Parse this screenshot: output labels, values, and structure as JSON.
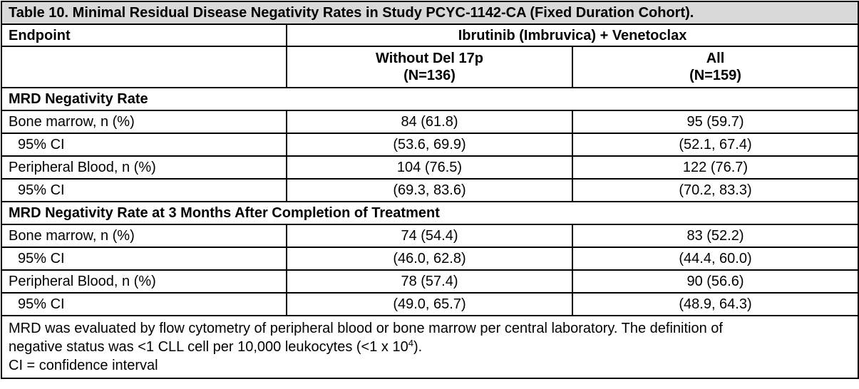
{
  "table": {
    "title": "Table 10. Minimal Residual Disease Negativity Rates in Study PCYC-1142-CA (Fixed Duration Cohort).",
    "endpoint_header": "Endpoint",
    "treatment_header": "Ibrutinib (Imbruvica) + Venetoclax",
    "columns": [
      {
        "name": "Without Del 17p",
        "n": "(N=136)"
      },
      {
        "name": "All",
        "n": "(N=159)"
      }
    ],
    "sections": [
      {
        "heading": "MRD Negativity Rate",
        "rows": [
          {
            "label": "Bone marrow, n (%)",
            "v1": "84 (61.8)",
            "v2": "95 (59.7)"
          },
          {
            "label": "95% CI",
            "v1": "(53.6, 69.9)",
            "v2": "(52.1, 67.4)"
          },
          {
            "label": "Peripheral Blood, n (%)",
            "v1": "104 (76.5)",
            "v2": "122 (76.7)"
          },
          {
            "label": "95% CI",
            "v1": "(69.3, 83.6)",
            "v2": "(70.2, 83.3)"
          }
        ]
      },
      {
        "heading": "MRD Negativity Rate at 3 Months After Completion of Treatment",
        "rows": [
          {
            "label": "Bone marrow, n (%)",
            "v1": "74 (54.4)",
            "v2": "83 (52.2)"
          },
          {
            "label": "95% CI",
            "v1": "(46.0, 62.8)",
            "v2": "(44.4, 60.0)"
          },
          {
            "label": "Peripheral Blood, n (%)",
            "v1": "78 (57.4)",
            "v2": "90 (56.6)"
          },
          {
            "label": "95% CI",
            "v1": "(49.0, 65.7)",
            "v2": "(48.9, 64.3)"
          }
        ]
      }
    ],
    "footnote": {
      "line1": "MRD was evaluated by flow cytometry of peripheral blood or bone marrow per central laboratory. The definition of",
      "line2_pre": "negative status was <1 CLL cell per 10,000 leukocytes (<1 x 10",
      "line2_sup": "4",
      "line2_post": ").",
      "line3": "CI = confidence interval"
    }
  }
}
